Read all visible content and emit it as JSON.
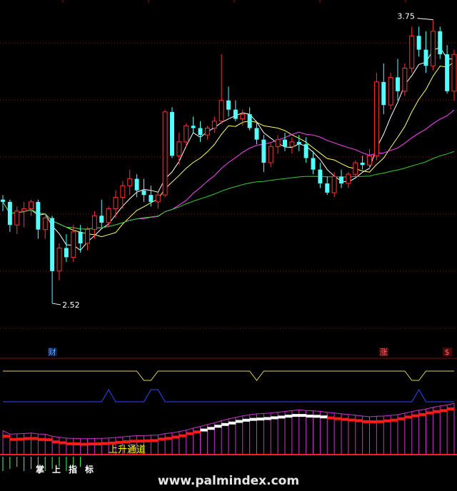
{
  "chart_data": {
    "type": "candlestick",
    "price_axis": {
      "min": 2.35,
      "max": 3.82,
      "scale": "linear",
      "grid": "dotted-red-horizontal"
    },
    "annotations": {
      "high_label": "3.75",
      "low_label": "2.52",
      "event_markers": [
        {
          "index": 7,
          "text": "财"
        },
        {
          "index": 54,
          "text": "涨"
        },
        {
          "index": 63,
          "text": "$"
        }
      ]
    },
    "candles": [
      [
        2.97,
        2.99,
        2.92,
        2.96
      ],
      [
        2.96,
        2.97,
        2.83,
        2.86
      ],
      [
        2.86,
        2.94,
        2.82,
        2.92
      ],
      [
        2.92,
        2.96,
        2.85,
        2.93
      ],
      [
        2.93,
        2.97,
        2.9,
        2.96
      ],
      [
        2.96,
        2.97,
        2.8,
        2.84
      ],
      [
        2.84,
        2.9,
        2.8,
        2.89
      ],
      [
        2.89,
        2.9,
        2.52,
        2.66
      ],
      [
        2.66,
        2.78,
        2.62,
        2.76
      ],
      [
        2.76,
        2.82,
        2.7,
        2.72
      ],
      [
        2.72,
        2.86,
        2.7,
        2.83
      ],
      [
        2.83,
        2.86,
        2.74,
        2.78
      ],
      [
        2.78,
        2.85,
        2.75,
        2.84
      ],
      [
        2.84,
        2.92,
        2.8,
        2.9
      ],
      [
        2.9,
        2.97,
        2.85,
        2.87
      ],
      [
        2.87,
        2.94,
        2.85,
        2.93
      ],
      [
        2.93,
        3.01,
        2.89,
        2.98
      ],
      [
        2.98,
        3.05,
        2.93,
        3.03
      ],
      [
        3.03,
        3.1,
        2.99,
        3.06
      ],
      [
        3.06,
        3.08,
        2.98,
        3.01
      ],
      [
        3.01,
        3.06,
        2.96,
        2.99
      ],
      [
        2.99,
        3.03,
        2.94,
        2.96
      ],
      [
        2.96,
        3.0,
        2.93,
        2.99
      ],
      [
        2.99,
        3.36,
        2.98,
        3.35
      ],
      [
        3.35,
        3.37,
        3.15,
        3.16
      ],
      [
        3.16,
        3.26,
        3.12,
        3.22
      ],
      [
        3.22,
        3.3,
        3.2,
        3.29
      ],
      [
        3.29,
        3.33,
        3.26,
        3.28
      ],
      [
        3.28,
        3.31,
        3.22,
        3.25
      ],
      [
        3.25,
        3.29,
        3.23,
        3.28
      ],
      [
        3.28,
        3.33,
        3.26,
        3.31
      ],
      [
        3.31,
        3.6,
        3.3,
        3.4
      ],
      [
        3.4,
        3.46,
        3.33,
        3.36
      ],
      [
        3.36,
        3.4,
        3.31,
        3.32
      ],
      [
        3.32,
        3.36,
        3.29,
        3.34
      ],
      [
        3.34,
        3.37,
        3.27,
        3.28
      ],
      [
        3.28,
        3.31,
        3.21,
        3.23
      ],
      [
        3.23,
        3.25,
        3.09,
        3.13
      ],
      [
        3.13,
        3.22,
        3.11,
        3.2
      ],
      [
        3.2,
        3.25,
        3.17,
        3.23
      ],
      [
        3.23,
        3.26,
        3.18,
        3.2
      ],
      [
        3.2,
        3.24,
        3.17,
        3.22
      ],
      [
        3.22,
        3.25,
        3.18,
        3.21
      ],
      [
        3.21,
        3.24,
        3.13,
        3.15
      ],
      [
        3.15,
        3.18,
        3.08,
        3.1
      ],
      [
        3.1,
        3.13,
        3.02,
        3.04
      ],
      [
        3.04,
        3.07,
        2.99,
        3.0
      ],
      [
        3.0,
        3.09,
        2.98,
        3.07
      ],
      [
        3.07,
        3.1,
        3.02,
        3.04
      ],
      [
        3.04,
        3.09,
        3.02,
        3.08
      ],
      [
        3.08,
        3.14,
        3.07,
        3.13
      ],
      [
        3.13,
        3.16,
        3.1,
        3.12
      ],
      [
        3.12,
        3.19,
        3.1,
        3.16
      ],
      [
        3.16,
        3.52,
        3.14,
        3.48
      ],
      [
        3.48,
        3.56,
        3.34,
        3.38
      ],
      [
        3.38,
        3.52,
        3.36,
        3.5
      ],
      [
        3.5,
        3.58,
        3.4,
        3.44
      ],
      [
        3.44,
        3.56,
        3.42,
        3.54
      ],
      [
        3.54,
        3.72,
        3.52,
        3.68
      ],
      [
        3.68,
        3.72,
        3.59,
        3.62
      ],
      [
        3.62,
        3.7,
        3.52,
        3.55
      ],
      [
        3.55,
        3.75,
        3.53,
        3.7
      ],
      [
        3.7,
        3.72,
        3.58,
        3.6
      ],
      [
        3.6,
        3.64,
        3.43,
        3.44
      ],
      [
        3.44,
        3.62,
        3.4,
        3.6
      ]
    ],
    "ma_colors": [
      "#ffffff",
      "#ffff66",
      "#ff44ff",
      "#33cc33"
    ],
    "indicator": {
      "label": "上升通道",
      "signal_text": "掌上指标",
      "colors": {
        "channel": "#ff1a1a",
        "white_band": "#ffffff",
        "histogram": "#cc33cc",
        "upper_line": "#e0d060",
        "blue_line": "#3344ff"
      }
    }
  },
  "watermark": "www.palmindex.com"
}
